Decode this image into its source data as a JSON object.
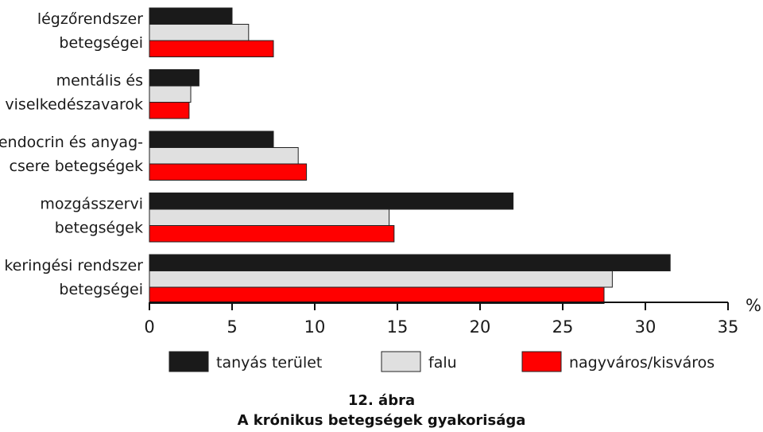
{
  "chart_data": {
    "type": "bar",
    "orientation": "horizontal",
    "categories": [
      [
        "légzőrendszer",
        "betegségei"
      ],
      [
        "mentális és",
        "viselkedészavarok"
      ],
      [
        "endocrin és anyag-",
        "csere betegségek"
      ],
      [
        "mozgásszervi",
        "betegségek"
      ],
      [
        "keringési rendszer",
        "betegségei"
      ]
    ],
    "series": [
      {
        "name": "tanyás terület",
        "color": "#1a1a1a",
        "values": [
          5,
          3,
          7.5,
          22,
          31.5
        ]
      },
      {
        "name": "falu",
        "color": "#e0e0e0",
        "values": [
          6,
          2.5,
          9,
          14.5,
          28
        ]
      },
      {
        "name": "nagyváros/kisváros",
        "color": "#ff0000",
        "values": [
          7.5,
          2.4,
          9.5,
          14.8,
          27.5
        ]
      }
    ],
    "xlim": [
      0,
      35
    ],
    "xticks": [
      "0",
      "5",
      "10",
      "15",
      "20",
      "25",
      "30",
      "35"
    ],
    "unit": "%",
    "legend_position": "bottom",
    "grid": false
  },
  "caption": {
    "number": "12. ábra",
    "title": "A krónikus betegségek gyakorisága"
  }
}
